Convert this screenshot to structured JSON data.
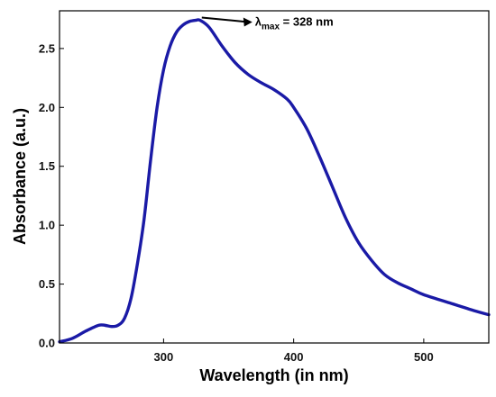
{
  "chart_data": {
    "type": "line",
    "xlabel": "Wavelength (in nm)",
    "ylabel": "Absorbance (a.u.)",
    "xlim": [
      220,
      550
    ],
    "ylim": [
      0,
      2.82
    ],
    "x_ticks": [
      300,
      400,
      500
    ],
    "y_ticks": [
      0.0,
      0.5,
      1.0,
      1.5,
      2.0,
      2.5
    ],
    "x_tick_labels": [
      "300",
      "400",
      "500"
    ],
    "y_tick_labels": [
      "0.0",
      "0.5",
      "1.0",
      "1.5",
      "2.0",
      "2.5"
    ],
    "grid": false,
    "line_color": "#1a1aa6",
    "annotation": {
      "lambda": "λ",
      "subscript": "max",
      "value_text": " = 328 nm",
      "points_to": {
        "x": 328,
        "y": 2.74
      }
    },
    "series": [
      {
        "x": [
          220,
          230,
          240,
          250,
          255,
          260,
          265,
          270,
          275,
          280,
          285,
          290,
          295,
          300,
          305,
          310,
          315,
          320,
          325,
          328,
          335,
          345,
          355,
          365,
          375,
          385,
          395,
          400,
          410,
          420,
          430,
          440,
          450,
          460,
          470,
          480,
          490,
          500,
          520,
          540,
          550
        ],
        "y": [
          0.01,
          0.04,
          0.1,
          0.15,
          0.15,
          0.14,
          0.15,
          0.21,
          0.38,
          0.68,
          1.05,
          1.55,
          2.0,
          2.32,
          2.52,
          2.64,
          2.7,
          2.73,
          2.74,
          2.74,
          2.68,
          2.52,
          2.38,
          2.28,
          2.21,
          2.15,
          2.07,
          2.0,
          1.82,
          1.58,
          1.32,
          1.06,
          0.85,
          0.7,
          0.58,
          0.51,
          0.46,
          0.41,
          0.34,
          0.27,
          0.24
        ]
      }
    ]
  }
}
